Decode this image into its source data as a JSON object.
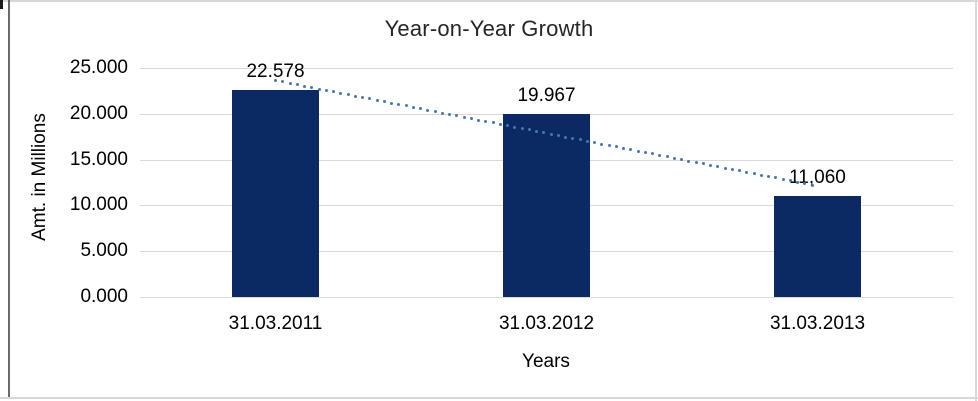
{
  "chart_data": {
    "type": "bar",
    "title": "Year-on-Year Growth",
    "categories": [
      "31.03.2011",
      "31.03.2012",
      "31.03.2013"
    ],
    "values": [
      22.578,
      19.967,
      11.06
    ],
    "data_labels": [
      "22.578",
      "19.967",
      "11,060"
    ],
    "xlabel": "Years",
    "ylabel": "Amt. in Millions",
    "y_ticks": [
      "0.000",
      "5.000",
      "10.000",
      "15.000",
      "20.000",
      "25.000"
    ],
    "ylim": [
      0,
      25
    ],
    "grid": true,
    "legend": "none",
    "bar_color": "#0b2a63",
    "gridline_color": "#d9d9d9",
    "trendline": {
      "type": "linear",
      "style": "dotted",
      "color": "#4576b5"
    }
  }
}
